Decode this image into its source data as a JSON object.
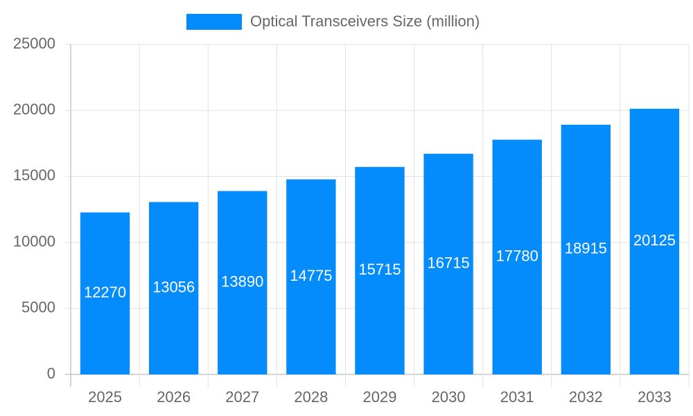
{
  "chart_data": {
    "type": "bar",
    "categories": [
      "2025",
      "2026",
      "2027",
      "2028",
      "2029",
      "2030",
      "2031",
      "2032",
      "2033"
    ],
    "series": [
      {
        "name": "Optical Transceivers Size (million)",
        "color": "#058cfc",
        "values": [
          12270,
          13056,
          13890,
          14775,
          15715,
          16715,
          17780,
          18915,
          20125
        ]
      }
    ],
    "ylim": [
      0,
      25000
    ],
    "yticks": [
      0,
      5000,
      10000,
      15000,
      20000,
      25000
    ],
    "grid": true
  }
}
